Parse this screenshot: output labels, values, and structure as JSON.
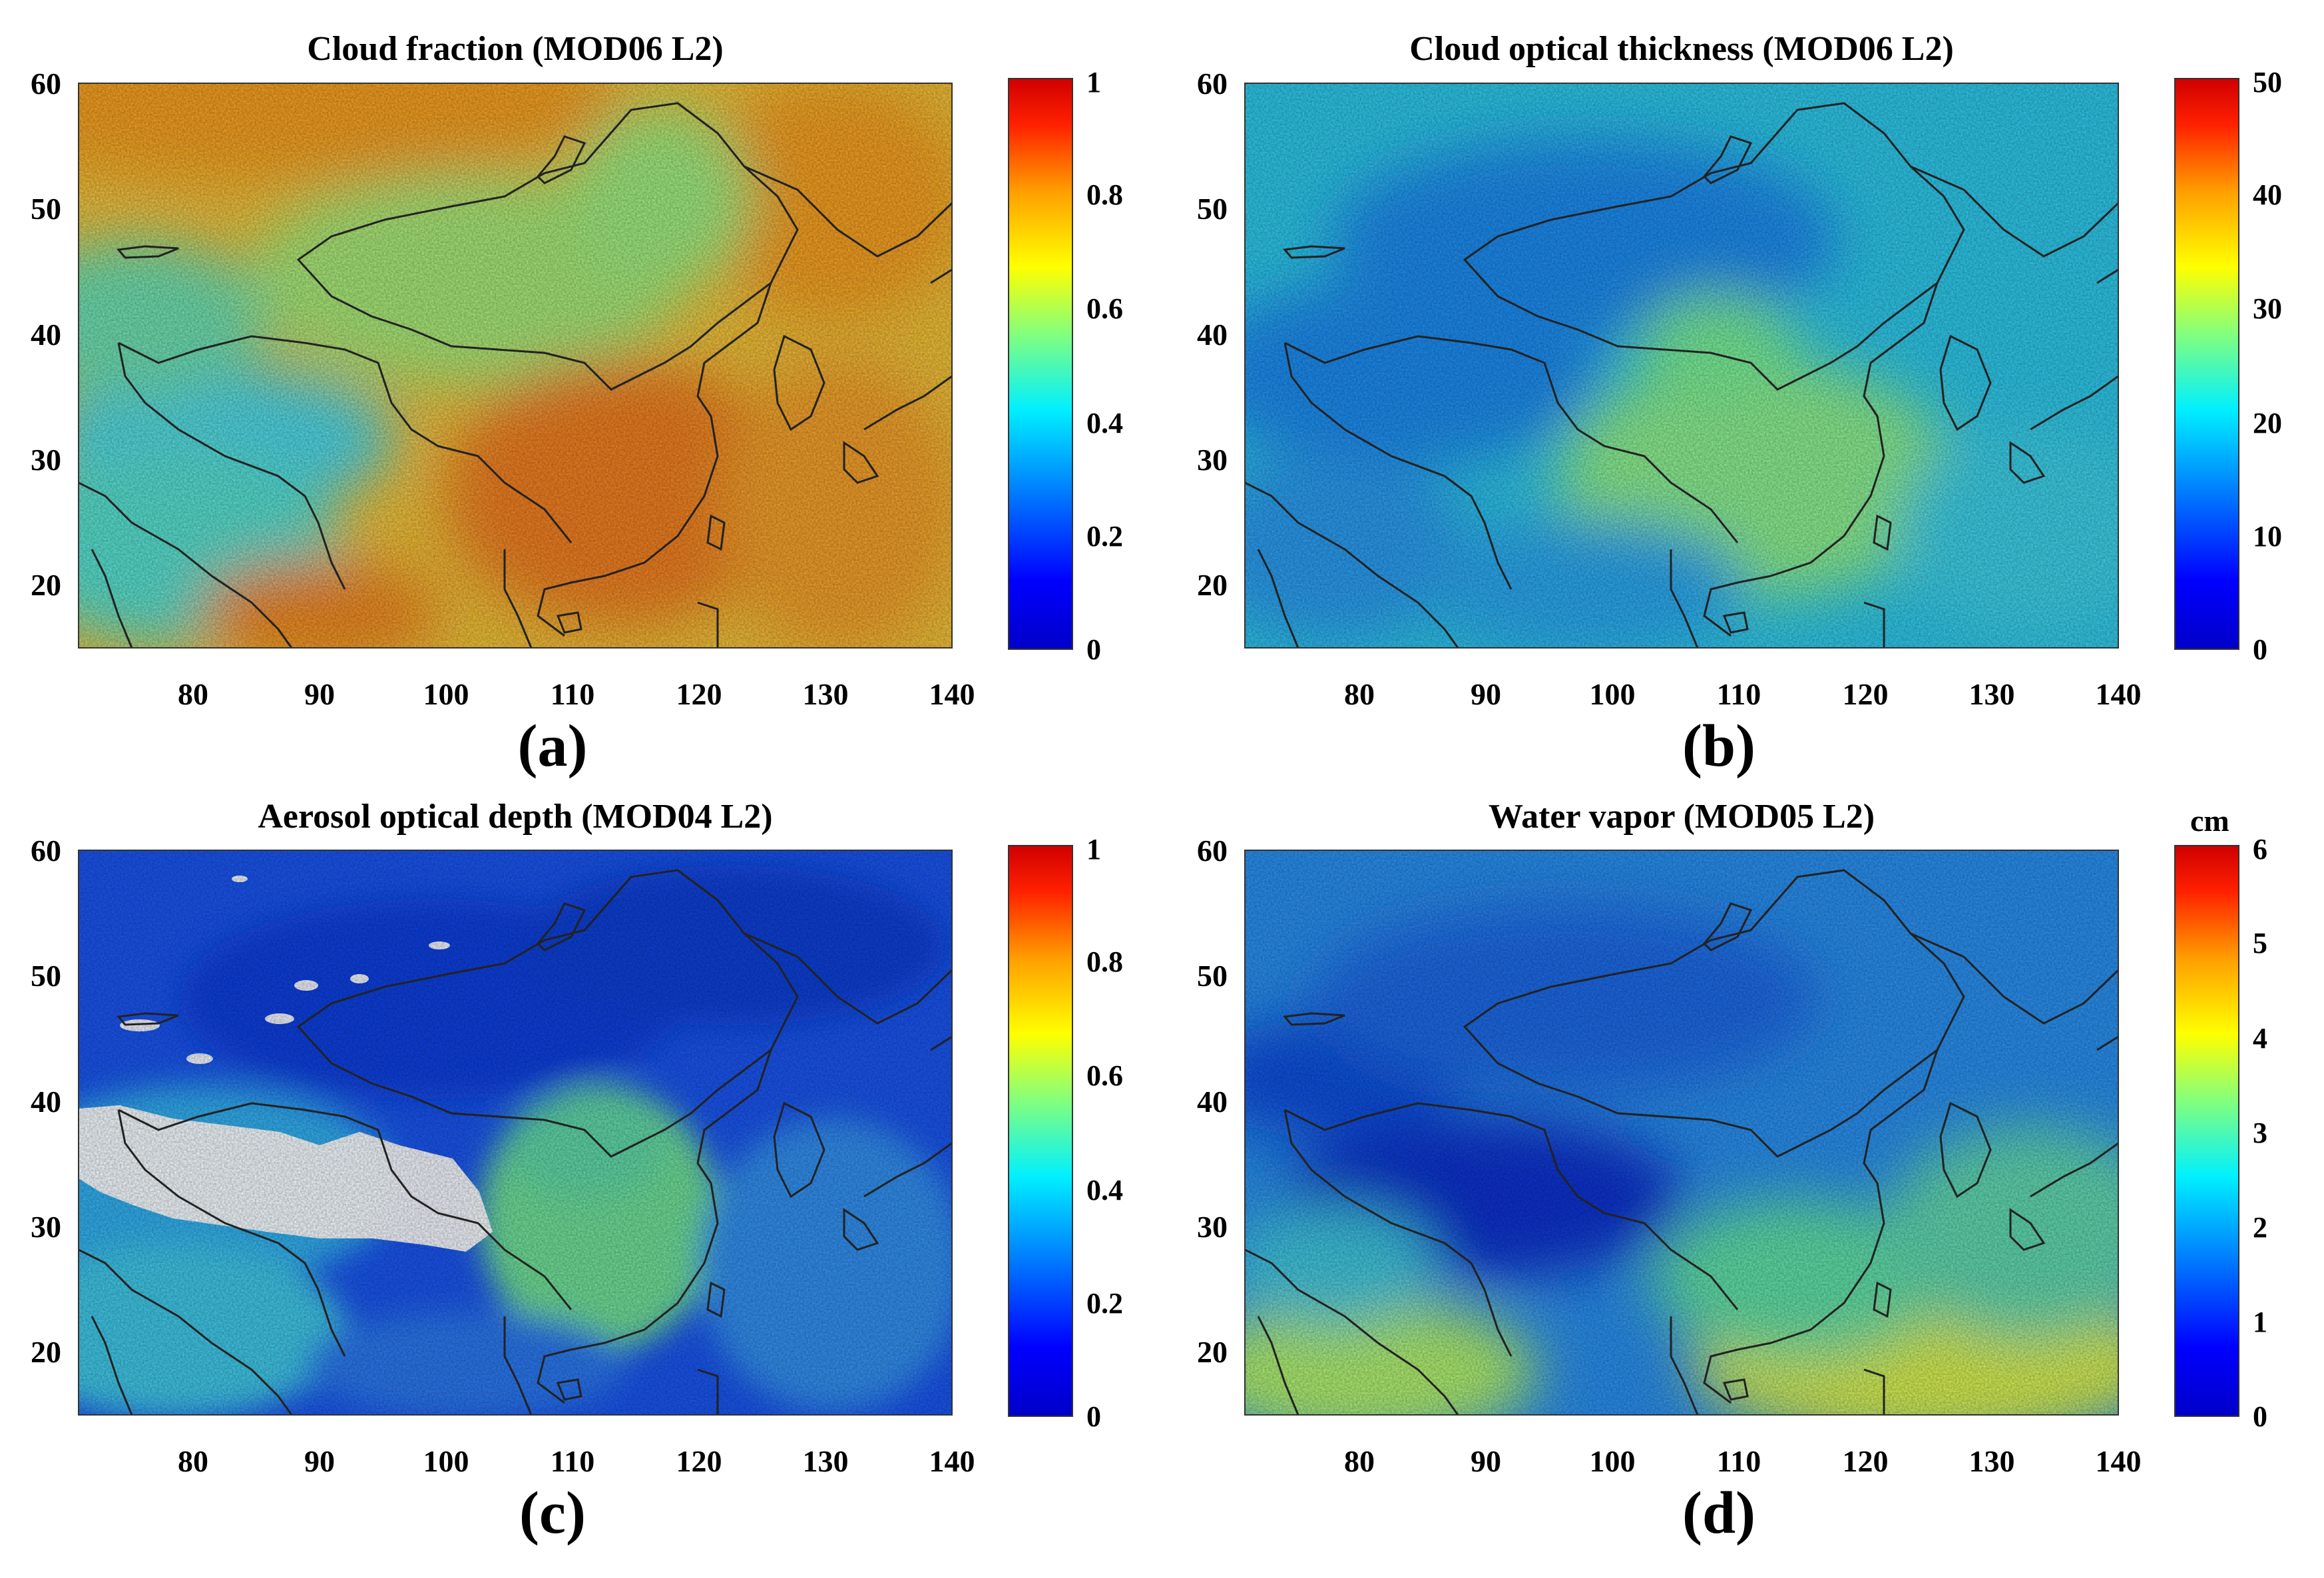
{
  "panels": [
    {
      "id": "a",
      "title": "Cloud fraction (MOD06 L2)",
      "panel_label": "(a)",
      "colorbar": {
        "min": 0,
        "max": 1,
        "ticks": [
          "0",
          "0.2",
          "0.4",
          "0.6",
          "0.8",
          "1"
        ],
        "unit": ""
      },
      "field": "cloud-fraction",
      "background": "#f5c03a"
    },
    {
      "id": "b",
      "title": "Cloud optical thickness (MOD06 L2)",
      "panel_label": "(b)",
      "colorbar": {
        "min": 0,
        "max": 50,
        "ticks": [
          "0",
          "10",
          "20",
          "30",
          "40",
          "50"
        ],
        "unit": ""
      },
      "field": "cloud-optical-thickness",
      "background": "#2ec3e8"
    },
    {
      "id": "c",
      "title": "Aerosol optical depth (MOD04 L2)",
      "panel_label": "(c)",
      "colorbar": {
        "min": 0,
        "max": 1,
        "ticks": [
          "0",
          "0.2",
          "0.4",
          "0.6",
          "0.8",
          "1"
        ],
        "unit": ""
      },
      "field": "aerosol-optical-depth",
      "background": "#1f5cf0"
    },
    {
      "id": "d",
      "title": "Water vapor (MOD05 L2)",
      "panel_label": "(d)",
      "colorbar": {
        "min": 0,
        "max": 6,
        "ticks": [
          "0",
          "1",
          "2",
          "3",
          "4",
          "5",
          "6"
        ],
        "unit": "cm"
      },
      "field": "water-vapor",
      "background": "#2b8ff0"
    }
  ],
  "axes": {
    "lon_range": [
      71,
      140
    ],
    "lat_range": [
      15,
      60
    ],
    "x_ticks": [
      "80",
      "90",
      "100",
      "110",
      "120",
      "130",
      "140"
    ],
    "y_ticks": [
      "20",
      "30",
      "40",
      "50",
      "60"
    ]
  },
  "colors": {
    "jet_stops": [
      "#00007f",
      "#0000ff",
      "#007fff",
      "#00ffff",
      "#7fff7f",
      "#ffff00",
      "#ff7f00",
      "#ff0000",
      "#7f0000"
    ],
    "coastline": "#202020",
    "no_data": "#ffffff"
  }
}
